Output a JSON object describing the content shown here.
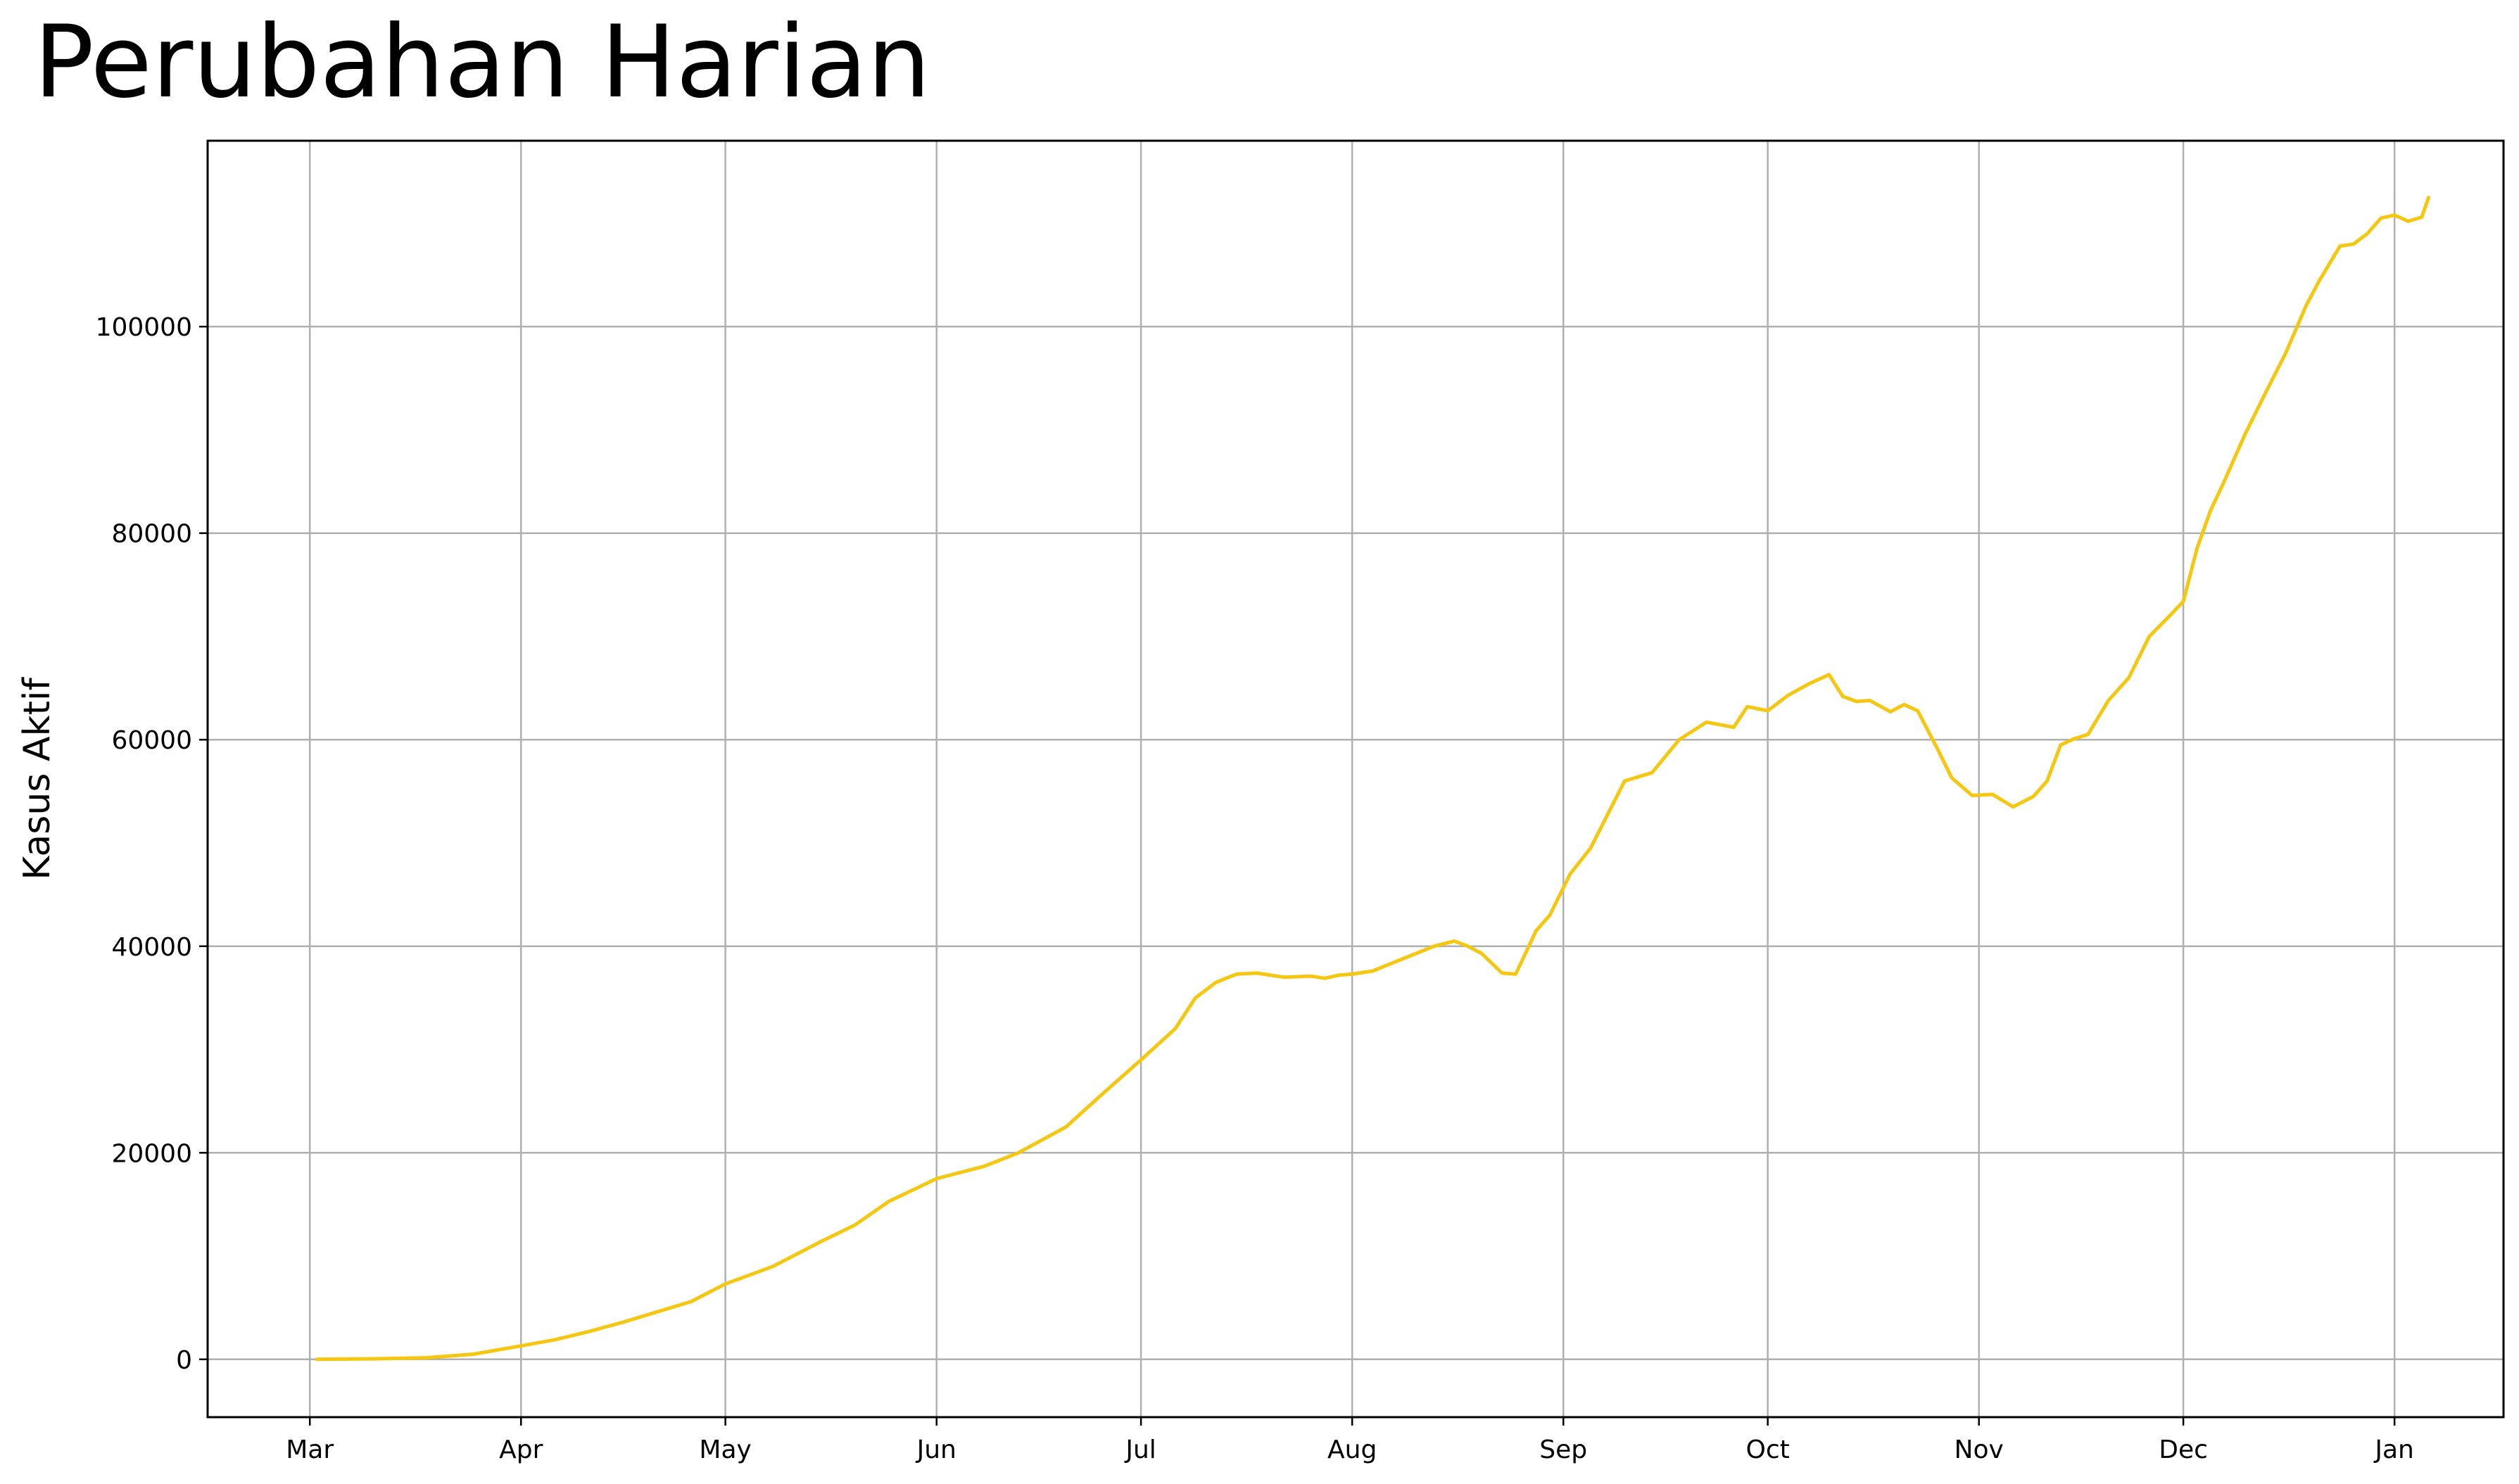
{
  "header": {
    "title": "Perubahan Harian"
  },
  "chart_data": {
    "type": "line",
    "title": "Perubahan Harian",
    "xlabel": "",
    "ylabel": "Kasus Aktif",
    "x_tick_labels": [
      "Mar",
      "Apr",
      "May",
      "Jun",
      "Jul",
      "Aug",
      "Sep",
      "Oct",
      "Nov",
      "Dec",
      "Jan"
    ],
    "x_tick_dates": [
      "2020-03-01",
      "2020-04-01",
      "2020-05-01",
      "2020-06-01",
      "2020-07-01",
      "2020-08-01",
      "2020-09-01",
      "2020-10-01",
      "2020-11-01",
      "2020-12-01",
      "2021-01-01"
    ],
    "xlim": [
      "2020-02-15",
      "2021-01-17"
    ],
    "y_tick_labels": [
      "0",
      "20000",
      "40000",
      "60000",
      "80000",
      "100000"
    ],
    "y_ticks": [
      0,
      20000,
      40000,
      60000,
      80000,
      100000
    ],
    "ylim": [
      -5600,
      118000
    ],
    "grid": true,
    "line_color": "#f5c711",
    "series": [
      {
        "x": [
          "2020-03-02",
          "2020-03-10",
          "2020-03-18",
          "2020-03-25",
          "2020-04-01",
          "2020-04-06",
          "2020-04-11",
          "2020-04-16",
          "2020-04-21",
          "2020-04-26",
          "2020-05-01",
          "2020-05-08",
          "2020-05-15",
          "2020-05-20",
          "2020-05-25",
          "2020-06-01",
          "2020-06-08",
          "2020-06-13",
          "2020-06-20",
          "2020-06-25",
          "2020-07-01",
          "2020-07-06",
          "2020-07-09",
          "2020-07-12",
          "2020-07-15",
          "2020-07-18",
          "2020-07-22",
          "2020-07-26",
          "2020-07-28",
          "2020-07-30",
          "2020-08-01",
          "2020-08-04",
          "2020-08-07",
          "2020-08-10",
          "2020-08-13",
          "2020-08-16",
          "2020-08-18",
          "2020-08-20",
          "2020-08-23",
          "2020-08-25",
          "2020-08-28",
          "2020-08-30",
          "2020-09-02",
          "2020-09-05",
          "2020-09-10",
          "2020-09-14",
          "2020-09-18",
          "2020-09-22",
          "2020-09-26",
          "2020-09-28",
          "2020-10-01",
          "2020-10-04",
          "2020-10-07",
          "2020-10-10",
          "2020-10-12",
          "2020-10-14",
          "2020-10-16",
          "2020-10-19",
          "2020-10-21",
          "2020-10-23",
          "2020-10-26",
          "2020-10-28",
          "2020-10-31",
          "2020-11-03",
          "2020-11-06",
          "2020-11-09",
          "2020-11-11",
          "2020-11-13",
          "2020-11-15",
          "2020-11-17",
          "2020-11-20",
          "2020-11-23",
          "2020-11-26",
          "2020-11-29",
          "2020-12-01",
          "2020-12-03",
          "2020-12-05",
          "2020-12-07",
          "2020-12-10",
          "2020-12-13",
          "2020-12-16",
          "2020-12-19",
          "2020-12-21",
          "2020-12-24",
          "2020-12-26",
          "2020-12-28",
          "2020-12-30",
          "2021-01-01",
          "2021-01-03",
          "2021-01-05",
          "2021-01-06"
        ],
        "y": [
          0,
          50,
          150,
          500,
          1300,
          1900,
          2700,
          3600,
          4600,
          5600,
          7300,
          9000,
          11400,
          13000,
          15300,
          17500,
          18700,
          20000,
          22500,
          25500,
          29000,
          32000,
          35000,
          36500,
          37300,
          37400,
          37000,
          37100,
          36900,
          37200,
          37300,
          37600,
          38400,
          39200,
          40000,
          40500,
          40000,
          39300,
          37400,
          37300,
          41500,
          43000,
          47000,
          49500,
          56000,
          56800,
          60000,
          61700,
          61200,
          63200,
          62800,
          64300,
          65400,
          66300,
          64200,
          63700,
          63800,
          62700,
          63400,
          62800,
          59000,
          56300,
          54600,
          54700,
          53500,
          54500,
          56000,
          59500,
          60100,
          60500,
          63800,
          66000,
          70000,
          72000,
          73400,
          78500,
          82200,
          85000,
          89500,
          93500,
          97400,
          102000,
          104500,
          107800,
          108000,
          109000,
          110500,
          110800,
          110200,
          110600,
          112500
        ]
      }
    ]
  }
}
